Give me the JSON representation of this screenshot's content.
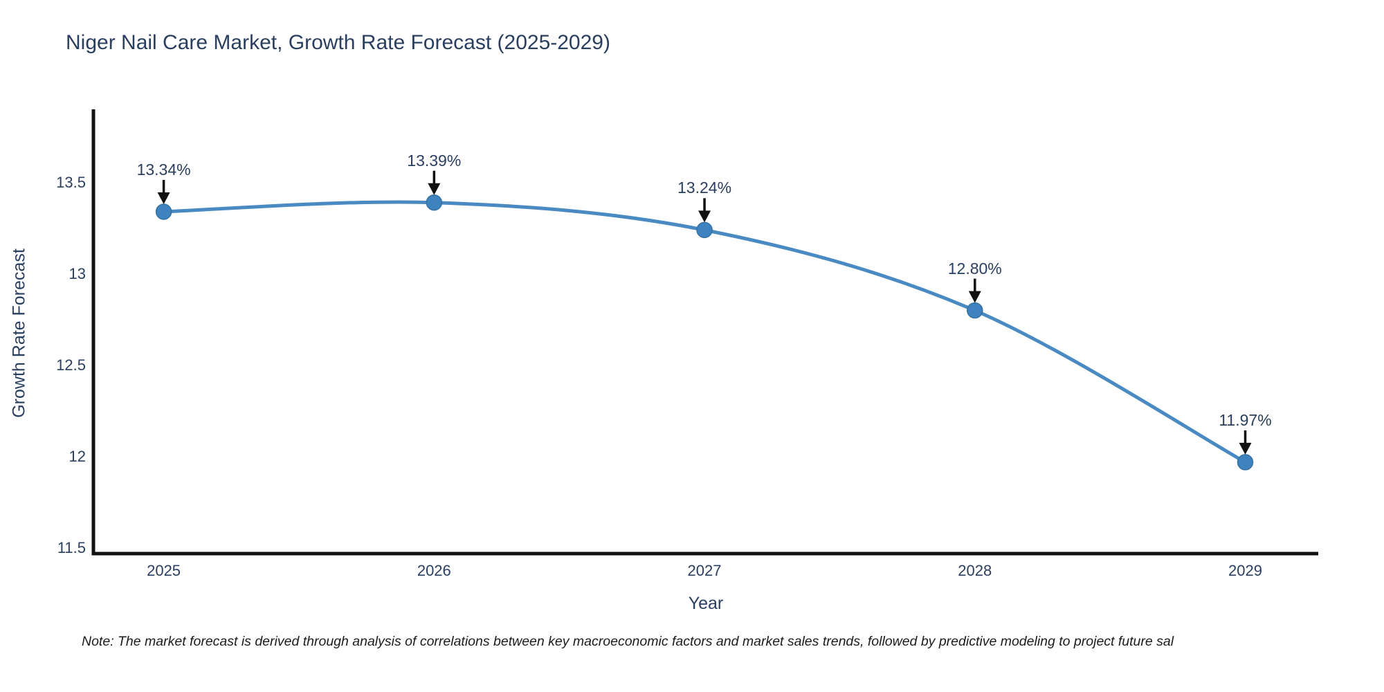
{
  "chart_data": {
    "type": "line",
    "title": "Niger Nail Care Market, Growth Rate Forecast (2025-2029)",
    "xlabel": "Year",
    "ylabel": "Growth Rate Forecast",
    "x": [
      2025,
      2026,
      2027,
      2028,
      2029
    ],
    "values": [
      13.34,
      13.39,
      13.24,
      12.8,
      11.97
    ],
    "point_labels": [
      "13.34%",
      "13.39%",
      "13.24%",
      "12.80%",
      "11.97%"
    ],
    "xticks": [
      "2025",
      "2026",
      "2027",
      "2028",
      "2029"
    ],
    "yticks": [
      11.5,
      12,
      12.5,
      13,
      13.5
    ],
    "ytick_labels": [
      "11.5",
      "12",
      "12.5",
      "13",
      "13.5"
    ],
    "xlim": [
      2024.74,
      2029.27
    ],
    "ylim": [
      11.47,
      13.9
    ],
    "line_shape": "spline",
    "grid": false,
    "legend": false,
    "line_color": "#4a8ac2",
    "marker_color": "#3e82c0",
    "marker_edge_color": "#35719f",
    "arrow_color": "#111111",
    "axis_color": "#111111",
    "text_color": "#2a3f5f"
  },
  "footnote": "Note: The market forecast is derived through analysis of correlations between key macroeconomic factors and market sales trends, followed by predictive modeling to project future sal"
}
